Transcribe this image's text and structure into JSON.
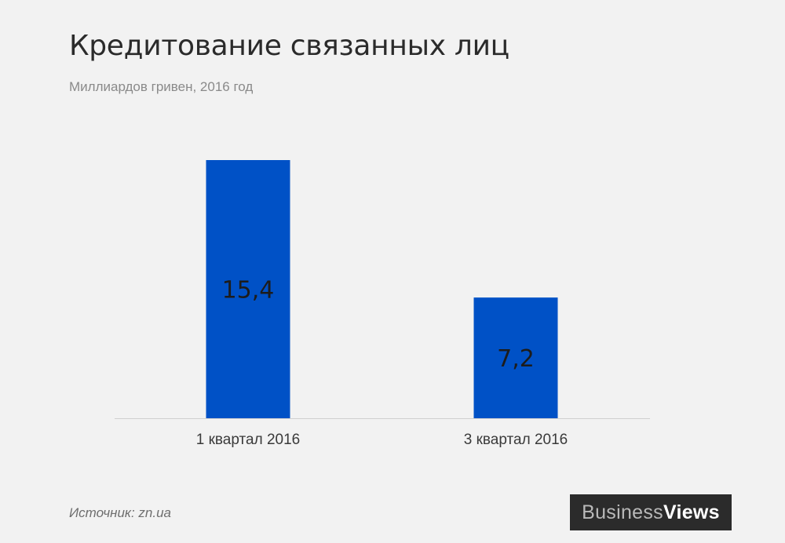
{
  "title": "Кредитование связанных лиц",
  "subtitle": "Миллиардов гривен, 2016 год",
  "source": "Источник: zn.ua",
  "logo": {
    "part1": "Business",
    "part2": "Views",
    "background": "#2b2b2b"
  },
  "colors": {
    "bar": "#0051c6",
    "background": "#f2f2f2",
    "baseline": "#d0d0d0"
  },
  "chart_data": {
    "type": "bar",
    "categories": [
      "1 квартал 2016",
      "3 квартал 2016"
    ],
    "values": [
      15.4,
      7.2
    ],
    "value_labels": [
      "15,4",
      "7,2"
    ],
    "xlabel": "",
    "ylabel": "",
    "ylim": [
      0,
      15.4
    ],
    "grid": false,
    "legend": "none"
  }
}
